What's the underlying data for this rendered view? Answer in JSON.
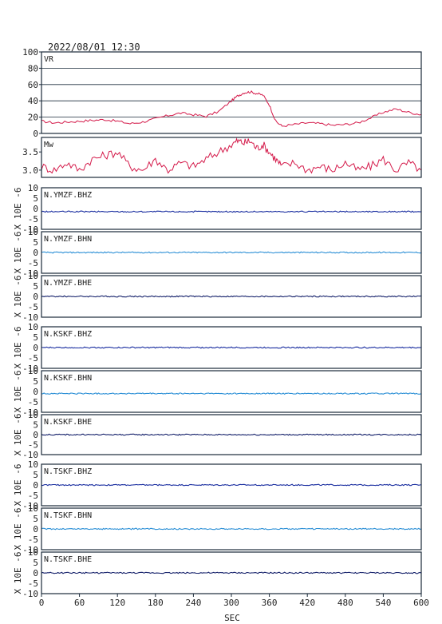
{
  "header": {
    "timestamp": "2022/08/01  12:30"
  },
  "x_axis": {
    "label": "SEC",
    "ticks": [
      "0",
      "60",
      "120",
      "180",
      "240",
      "300",
      "360",
      "420",
      "480",
      "540",
      "600"
    ]
  },
  "colors": {
    "vr_mw_line": "#d41a4a",
    "bhz": "#1a2ea0",
    "bhn": "#2b8fd6",
    "bhe": "#14206a",
    "frame": "#1a2a3a",
    "grid": "#1a2a3a"
  },
  "chart_data": [
    {
      "type": "line",
      "title": "VR",
      "xlim": [
        0,
        600
      ],
      "ylim": [
        0,
        100
      ],
      "grid": true,
      "y_ticks": [
        "100",
        "80",
        "60",
        "40",
        "20",
        "0"
      ],
      "x": [
        0,
        20,
        40,
        60,
        80,
        100,
        120,
        140,
        160,
        180,
        200,
        220,
        240,
        260,
        280,
        300,
        310,
        320,
        330,
        340,
        350,
        360,
        370,
        380,
        400,
        420,
        440,
        460,
        480,
        500,
        520,
        540,
        560,
        580,
        600
      ],
      "values": [
        15,
        13,
        14,
        15,
        16,
        17,
        15,
        12,
        14,
        18,
        22,
        25,
        23,
        21,
        27,
        40,
        46,
        50,
        51,
        49,
        47,
        35,
        15,
        9,
        11,
        13,
        12,
        10,
        11,
        13,
        19,
        26,
        30,
        26,
        23
      ]
    },
    {
      "type": "line",
      "title": "Mw",
      "xlim": [
        0,
        600
      ],
      "ylim": [
        2.8,
        3.9
      ],
      "grid": false,
      "y_ticks": [
        "3.5",
        "3.0"
      ],
      "x": [
        0,
        20,
        40,
        60,
        80,
        100,
        120,
        140,
        160,
        180,
        200,
        220,
        240,
        260,
        280,
        300,
        310,
        320,
        330,
        340,
        350,
        360,
        370,
        380,
        400,
        420,
        440,
        460,
        480,
        500,
        520,
        540,
        560,
        580,
        600
      ],
      "values": [
        3.1,
        3.0,
        3.2,
        3.0,
        3.3,
        3.4,
        3.5,
        3.1,
        3.0,
        3.3,
        3.0,
        3.2,
        3.1,
        3.3,
        3.5,
        3.7,
        3.8,
        3.75,
        3.8,
        3.6,
        3.7,
        3.5,
        3.3,
        3.1,
        3.2,
        3.0,
        3.1,
        3.0,
        3.2,
        3.0,
        3.1,
        3.3,
        3.0,
        3.2,
        3.0
      ]
    },
    {
      "type": "line",
      "title": "N.YMZF.BHZ",
      "ylabel": "X 10E -6",
      "xlim": [
        0,
        600
      ],
      "ylim": [
        -10,
        10
      ],
      "y_ticks": [
        "10",
        "5",
        "0",
        "-5",
        "-10"
      ],
      "x": [
        0,
        600
      ],
      "values": [
        -1.5,
        -1.5
      ]
    },
    {
      "type": "line",
      "title": "N.YMZF.BHN",
      "ylabel": "X 10E -6",
      "xlim": [
        0,
        600
      ],
      "ylim": [
        -10,
        10
      ],
      "y_ticks": [
        "10",
        "5",
        "0",
        "-5",
        "-10"
      ],
      "x": [
        0,
        600
      ],
      "values": [
        0,
        0
      ]
    },
    {
      "type": "line",
      "title": "N.YMZF.BHE",
      "ylabel": "X 10E -6",
      "xlim": [
        0,
        600
      ],
      "ylim": [
        -10,
        10
      ],
      "y_ticks": [
        "10",
        "5",
        "0",
        "-5",
        "-10"
      ],
      "x": [
        0,
        600
      ],
      "values": [
        0,
        0
      ]
    },
    {
      "type": "line",
      "title": "N.KSKF.BHZ",
      "ylabel": "X 10E -6",
      "xlim": [
        0,
        600
      ],
      "ylim": [
        -10,
        10
      ],
      "y_ticks": [
        "10",
        "5",
        "0",
        "-5",
        "-10"
      ],
      "x": [
        0,
        600
      ],
      "values": [
        0,
        0
      ]
    },
    {
      "type": "line",
      "title": "N.KSKF.BHN",
      "ylabel": "X 10E -6",
      "xlim": [
        0,
        600
      ],
      "ylim": [
        -10,
        10
      ],
      "y_ticks": [
        "10",
        "5",
        "0",
        "-5",
        "-10"
      ],
      "x": [
        0,
        600
      ],
      "values": [
        -1,
        -1
      ]
    },
    {
      "type": "line",
      "title": "N.KSKF.BHE",
      "ylabel": "X 10E -6",
      "xlim": [
        0,
        600
      ],
      "ylim": [
        -10,
        10
      ],
      "y_ticks": [
        "10",
        "5",
        "0",
        "-5",
        "-10"
      ],
      "x": [
        0,
        600
      ],
      "values": [
        0,
        0
      ]
    },
    {
      "type": "line",
      "title": "N.TSKF.BHZ",
      "ylabel": "X 10E -6",
      "xlim": [
        0,
        600
      ],
      "ylim": [
        -10,
        10
      ],
      "y_ticks": [
        "10",
        "5",
        "0",
        "-5",
        "-10"
      ],
      "x": [
        0,
        600
      ],
      "values": [
        0,
        0
      ]
    },
    {
      "type": "line",
      "title": "N.TSKF.BHN",
      "ylabel": "X 10E -6",
      "xlim": [
        0,
        600
      ],
      "ylim": [
        -10,
        10
      ],
      "y_ticks": [
        "10",
        "5",
        "0",
        "-5",
        "-10"
      ],
      "x": [
        0,
        600
      ],
      "values": [
        0,
        0
      ]
    },
    {
      "type": "line",
      "title": "N.TSKF.BHE",
      "ylabel": "X 10E -6",
      "xlim": [
        0,
        600
      ],
      "ylim": [
        -10,
        10
      ],
      "y_ticks": [
        "10",
        "5",
        "0",
        "-5",
        "-10"
      ],
      "x": [
        0,
        600
      ],
      "values": [
        0,
        0
      ]
    }
  ]
}
